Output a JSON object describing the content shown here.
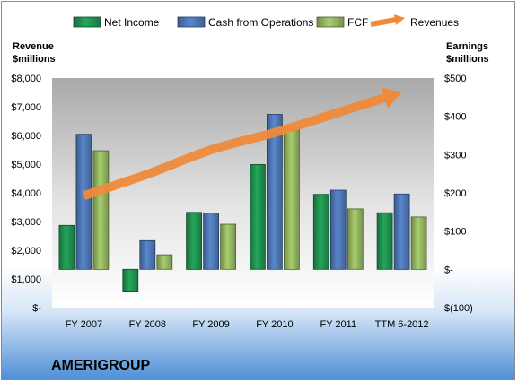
{
  "company_name": "AMERIGROUP",
  "chart_data": {
    "type": "bar",
    "categories": [
      "FY 2007",
      "FY 2008",
      "FY 2009",
      "FY 2010",
      "FY 2011",
      "TTM 6-2012"
    ],
    "series": [
      {
        "name": "Net Income",
        "axis": "right",
        "color": "#1f8a4c",
        "values": [
          115,
          -57,
          149,
          274,
          196,
          148
        ]
      },
      {
        "name": "Cash from Operations",
        "axis": "right",
        "color": "#4a71ac",
        "values": [
          353,
          75,
          147,
          405,
          207,
          197
        ]
      },
      {
        "name": "FCF",
        "axis": "right",
        "color": "#8cac5c",
        "values": [
          310,
          38,
          118,
          374,
          158,
          137
        ]
      },
      {
        "name": "Revenues",
        "axis": "left",
        "type": "trend-arrow",
        "color": "#ef8a3a",
        "values": [
          3900,
          4650,
          5500,
          6100,
          6800,
          7500
        ]
      }
    ],
    "y_left": {
      "title_lines": [
        "Revenue",
        "$millions"
      ],
      "ylim": [
        0,
        8000
      ],
      "ticks": [
        "$-",
        "$1,000",
        "$2,000",
        "$3,000",
        "$4,000",
        "$5,000",
        "$6,000",
        "$7,000",
        "$8,000"
      ]
    },
    "y_right": {
      "title_lines": [
        "Earnings",
        "$millions"
      ],
      "ylim": [
        -100,
        500
      ],
      "ticks": [
        "$(100)",
        "$-",
        "$100",
        "$200",
        "$300",
        "$400",
        "$500"
      ]
    },
    "legend_position": "top",
    "grid": false
  }
}
